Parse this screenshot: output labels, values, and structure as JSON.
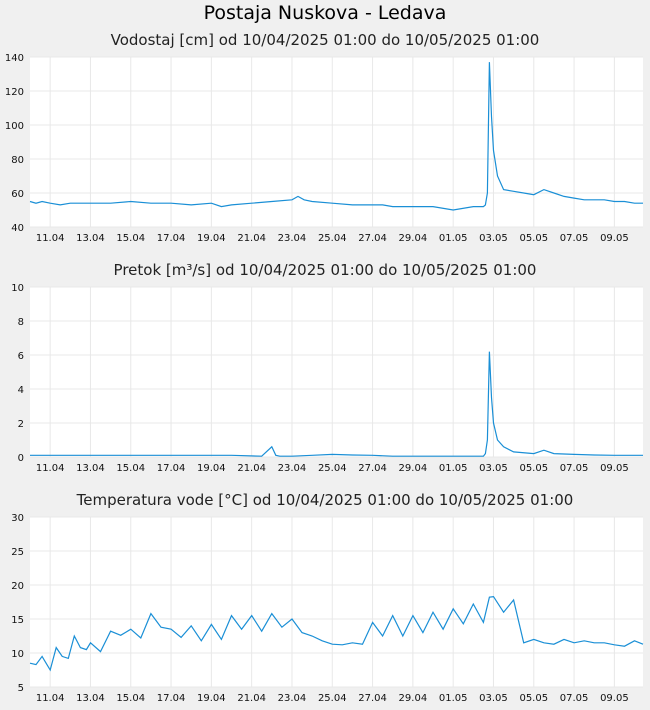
{
  "page": {
    "title": "Postaja Nuskova - Ledava",
    "accent_color": "#1a8fd6"
  },
  "chart_data": [
    {
      "id": "level",
      "type": "line",
      "title": "Vodostaj [cm] od 10/04/2025 01:00 do 10/05/2025 01:00",
      "ylim": [
        40,
        140
      ],
      "yticks": [
        "40",
        "60",
        "80",
        "100",
        "120",
        "140"
      ],
      "xlim": [
        0,
        30.42
      ],
      "xtick_days": [
        1,
        3,
        5,
        7,
        9,
        11,
        13,
        15,
        17,
        19,
        21,
        23,
        25,
        27,
        29
      ],
      "xticks": [
        "11.04",
        "13.04",
        "15.04",
        "17.04",
        "19.04",
        "21.04",
        "23.04",
        "25.04",
        "27.04",
        "29.04",
        "01.05",
        "03.05",
        "05.05",
        "07.05",
        "09.05"
      ],
      "grid": true,
      "series": [
        {
          "x": [
            0,
            0.3,
            0.6,
            1.0,
            1.5,
            2.0,
            3.0,
            4.0,
            5.0,
            6.0,
            6.5,
            7.0,
            8.0,
            9.0,
            9.5,
            10.0,
            11.0,
            12.0,
            13.0,
            13.3,
            13.6,
            14.0,
            15.0,
            16.0,
            17.0,
            17.5,
            18.0,
            18.5,
            19.0,
            20.0,
            21.0,
            22.0,
            22.2,
            22.4,
            22.5,
            22.6,
            22.7,
            22.8,
            22.9,
            23.0,
            23.2,
            23.5,
            24.0,
            24.5,
            25.0,
            25.5,
            26.0,
            26.5,
            27.0,
            27.5,
            28.0,
            28.5,
            29.0,
            29.5,
            30.0,
            30.42
          ],
          "y": [
            55,
            54,
            55,
            54,
            53,
            54,
            54,
            54,
            55,
            54,
            54,
            54,
            53,
            54,
            52,
            53,
            54,
            55,
            56,
            58,
            56,
            55,
            54,
            53,
            53,
            53,
            52,
            52,
            52,
            52,
            50,
            52,
            52,
            52,
            52,
            53,
            60,
            137,
            105,
            85,
            70,
            62,
            61,
            60,
            59,
            62,
            60,
            58,
            57,
            56,
            56,
            56,
            55,
            55,
            54,
            54
          ]
        }
      ]
    },
    {
      "id": "flow",
      "type": "line",
      "title": "Pretok [m³/s] od 10/04/2025 01:00 do 10/05/2025 01:00",
      "ylim": [
        0,
        10
      ],
      "yticks": [
        "0",
        "2",
        "4",
        "6",
        "8",
        "10"
      ],
      "xlim": [
        0,
        30.42
      ],
      "xtick_days": [
        1,
        3,
        5,
        7,
        9,
        11,
        13,
        15,
        17,
        19,
        21,
        23,
        25,
        27,
        29
      ],
      "xticks": [
        "11.04",
        "13.04",
        "15.04",
        "17.04",
        "19.04",
        "21.04",
        "23.04",
        "25.04",
        "27.04",
        "29.04",
        "01.05",
        "03.05",
        "05.05",
        "07.05",
        "09.05"
      ],
      "grid": true,
      "series": [
        {
          "x": [
            0,
            2,
            4,
            6,
            8,
            10,
            11.5,
            12.0,
            12.2,
            12.4,
            13,
            14,
            15,
            16,
            17,
            18,
            19,
            20,
            21,
            22,
            22.5,
            22.6,
            22.7,
            22.8,
            22.9,
            23.0,
            23.2,
            23.5,
            24,
            25,
            25.5,
            26,
            27,
            28,
            29,
            30,
            30.42
          ],
          "y": [
            0.1,
            0.1,
            0.1,
            0.1,
            0.1,
            0.1,
            0.05,
            0.6,
            0.1,
            0.05,
            0.05,
            0.1,
            0.15,
            0.12,
            0.1,
            0.05,
            0.05,
            0.05,
            0.05,
            0.05,
            0.05,
            0.2,
            1.0,
            6.2,
            3.5,
            2.0,
            1.0,
            0.6,
            0.3,
            0.2,
            0.4,
            0.2,
            0.15,
            0.12,
            0.1,
            0.1,
            0.1
          ]
        }
      ]
    },
    {
      "id": "temp",
      "type": "line",
      "title": "Temperatura vode [°C] od 10/04/2025 01:00 do 10/05/2025 01:00",
      "ylim": [
        5,
        30
      ],
      "yticks": [
        "5",
        "10",
        "15",
        "20",
        "25",
        "30"
      ],
      "xlim": [
        0,
        30.42
      ],
      "xtick_days": [
        1,
        3,
        5,
        7,
        9,
        11,
        13,
        15,
        17,
        19,
        21,
        23,
        25,
        27,
        29
      ],
      "xticks": [
        "11.04",
        "13.04",
        "15.04",
        "17.04",
        "19.04",
        "21.04",
        "23.04",
        "25.04",
        "27.04",
        "29.04",
        "01.05",
        "03.05",
        "05.05",
        "07.05",
        "09.05"
      ],
      "grid": true,
      "series": [
        {
          "x": [
            0,
            0.3,
            0.6,
            0.8,
            1.0,
            1.3,
            1.6,
            1.9,
            2.2,
            2.5,
            2.8,
            3.0,
            3.5,
            4.0,
            4.5,
            5.0,
            5.5,
            6.0,
            6.5,
            7.0,
            7.5,
            8.0,
            8.5,
            9.0,
            9.5,
            10.0,
            10.5,
            11.0,
            11.5,
            12.0,
            12.5,
            13.0,
            13.5,
            14.0,
            14.5,
            15.0,
            15.5,
            16.0,
            16.5,
            17.0,
            17.5,
            18.0,
            18.5,
            19.0,
            19.5,
            20.0,
            20.5,
            21.0,
            21.5,
            22.0,
            22.5,
            22.8,
            23.0,
            23.5,
            24.0,
            24.5,
            25.0,
            25.5,
            26.0,
            26.5,
            27.0,
            27.5,
            28.0,
            28.5,
            29.0,
            29.5,
            30.0,
            30.42
          ],
          "y": [
            8.5,
            8.3,
            9.5,
            8.5,
            7.5,
            10.8,
            9.5,
            9.2,
            12.5,
            10.8,
            10.5,
            11.5,
            10.2,
            13.2,
            12.6,
            13.5,
            12.2,
            15.8,
            13.8,
            13.5,
            12.3,
            14.0,
            11.8,
            14.2,
            12.0,
            15.5,
            13.5,
            15.5,
            13.2,
            15.8,
            13.8,
            15.0,
            13.0,
            12.5,
            11.8,
            11.3,
            11.2,
            11.5,
            11.3,
            14.5,
            12.5,
            15.5,
            12.5,
            15.5,
            13.0,
            16.0,
            13.5,
            16.5,
            14.3,
            17.2,
            14.5,
            18.2,
            18.3,
            16.0,
            17.8,
            11.5,
            12.0,
            11.5,
            11.3,
            12.0,
            11.5,
            11.8,
            11.5,
            11.5,
            11.2,
            11.0,
            11.8,
            11.3
          ]
        }
      ]
    }
  ]
}
